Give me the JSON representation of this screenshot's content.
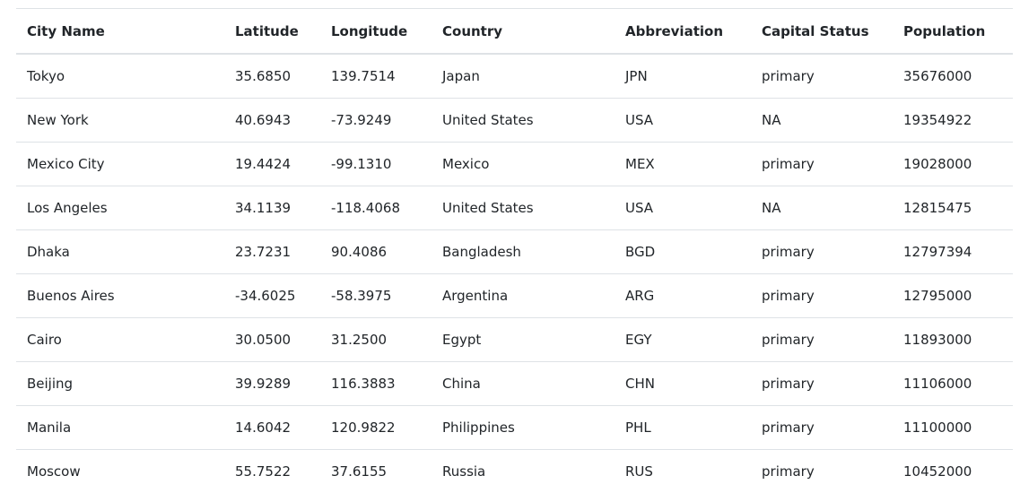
{
  "table": {
    "columns": [
      "City Name",
      "Latitude",
      "Longitude",
      "Country",
      "Abbreviation",
      "Capital Status",
      "Population"
    ],
    "rows": [
      [
        "Tokyo",
        "35.6850",
        "139.7514",
        "Japan",
        "JPN",
        "primary",
        "35676000"
      ],
      [
        "New York",
        "40.6943",
        "-73.9249",
        "United States",
        "USA",
        "NA",
        "19354922"
      ],
      [
        "Mexico City",
        "19.4424",
        "-99.1310",
        "Mexico",
        "MEX",
        "primary",
        "19028000"
      ],
      [
        "Los Angeles",
        "34.1139",
        "-118.4068",
        "United States",
        "USA",
        "NA",
        "12815475"
      ],
      [
        "Dhaka",
        "23.7231",
        "90.4086",
        "Bangladesh",
        "BGD",
        "primary",
        "12797394"
      ],
      [
        "Buenos Aires",
        "-34.6025",
        "-58.3975",
        "Argentina",
        "ARG",
        "primary",
        "12795000"
      ],
      [
        "Cairo",
        "30.0500",
        "31.2500",
        "Egypt",
        "EGY",
        "primary",
        "11893000"
      ],
      [
        "Beijing",
        "39.9289",
        "116.3883",
        "China",
        "CHN",
        "primary",
        "11106000"
      ],
      [
        "Manila",
        "14.6042",
        "120.9822",
        "Philippines",
        "PHL",
        "primary",
        "11100000"
      ],
      [
        "Moscow",
        "55.7522",
        "37.6155",
        "Russia",
        "RUS",
        "primary",
        "10452000"
      ]
    ]
  }
}
